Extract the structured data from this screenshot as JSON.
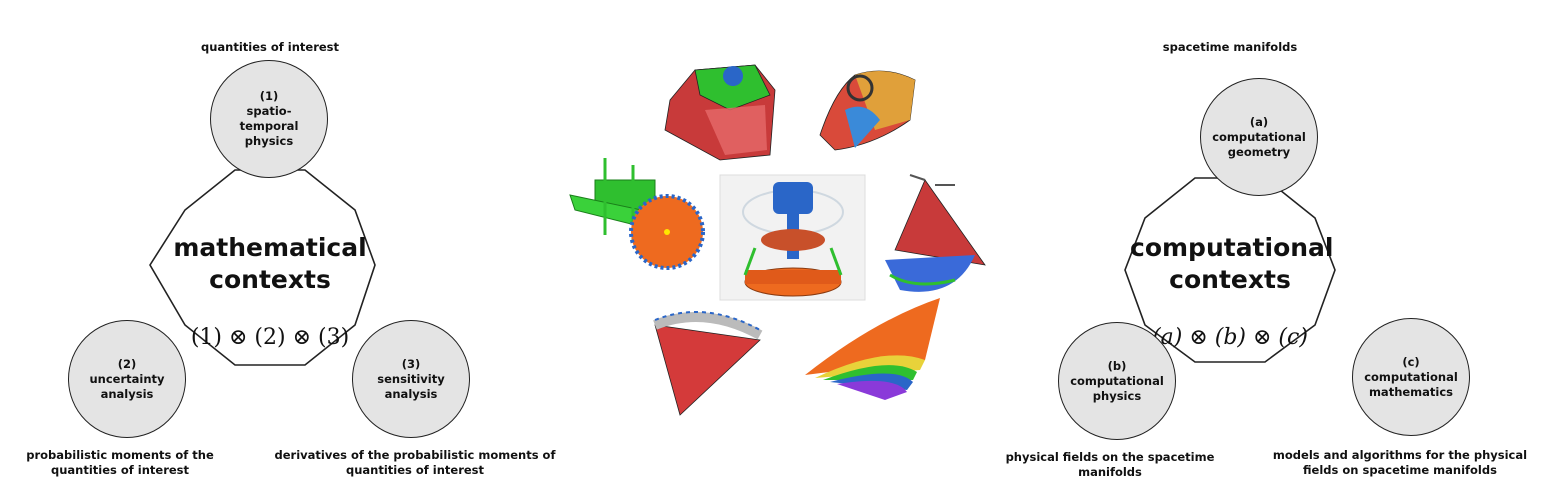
{
  "left": {
    "top_label": "quantities of interest",
    "title_line1": "mathematical",
    "title_line2": "contexts",
    "formula": "(1) ⊗ (2) ⊗ (3)",
    "nodes": [
      {
        "num": "(1)",
        "text": "spatio-\ntemporal\nphysics"
      },
      {
        "num": "(2)",
        "text": "uncertainty\nanalysis"
      },
      {
        "num": "(3)",
        "text": "sensitivity\nanalysis"
      }
    ],
    "bottom_left_label": "probabilistic moments of the\nquantities of interest",
    "bottom_right_label": "derivatives of the probabilistic moments of\nquantities of interest"
  },
  "right": {
    "top_label": "spacetime manifolds",
    "title_line1": "computational",
    "title_line2": "contexts",
    "formula": "(a) ⊗ (b) ⊗ (c)",
    "nodes": [
      {
        "num": "(a)",
        "text": "computational\ngeometry"
      },
      {
        "num": "(b)",
        "text": "computational\nphysics"
      },
      {
        "num": "(c)",
        "text": "computational\nmathematics"
      }
    ],
    "bottom_left_label": "physical fields on the spacetime\nmanifolds",
    "bottom_right_label": "models and algorithms for the physical\nfields on spacetime manifolds"
  },
  "colors": {
    "node_fill": "#e4e4e4",
    "stroke": "#222222",
    "mesh_red": "#d43a3a",
    "mesh_green": "#2fbf2f",
    "mesh_blue": "#2a66c8",
    "mesh_orange": "#ee6a1f"
  }
}
